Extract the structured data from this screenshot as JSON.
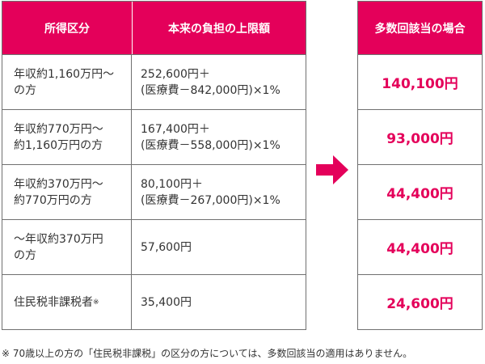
{
  "colors": {
    "accent": "#e4005a",
    "border": "#707070",
    "text": "#333333"
  },
  "main_table": {
    "headers": [
      "所得区分",
      "本来の負担の上限額"
    ],
    "rows": [
      {
        "category": "年収約1,160万円～\nの方",
        "limit": "252,600円＋\n(医療費－842,000円)×1%"
      },
      {
        "category": "年収約770万円～\n約1,160万円の方",
        "limit": "167,400円＋\n(医療費－558,000円)×1%"
      },
      {
        "category": "年収約370万円～\n約770万円の方",
        "limit": "80,100円＋\n(医療費－267,000円)×1%"
      },
      {
        "category": "～年収約370万円\nの方",
        "limit": "57,600円"
      },
      {
        "category": "住民税非課税者",
        "category_mark": "※",
        "limit": "35,400円"
      }
    ]
  },
  "arrow_icon": "right-arrow-icon",
  "side_table": {
    "header": "多数回該当の場合",
    "values": [
      "140,100円",
      "93,000円",
      "44,400円",
      "44,400円",
      "24,600円"
    ]
  },
  "footnote": "※ 70歳以上の方の「住民税非課税」の区分の方については、多数回該当の適用はありません。"
}
